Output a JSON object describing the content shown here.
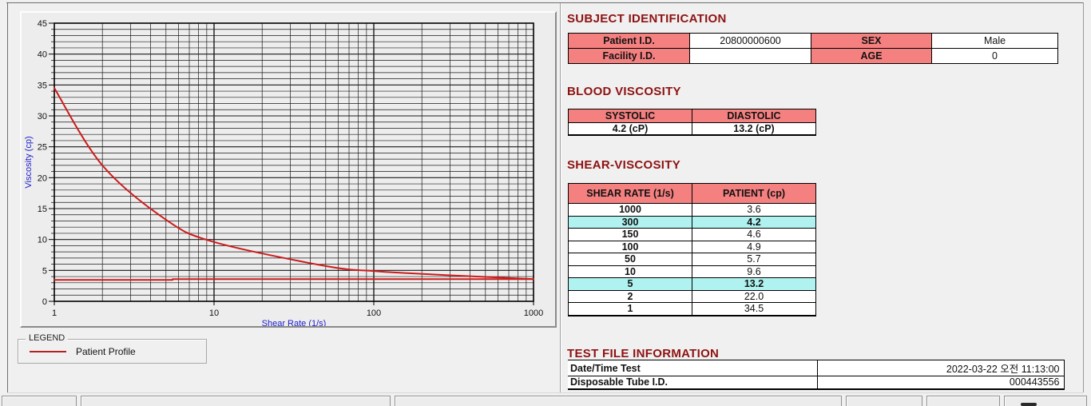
{
  "sections": {
    "subject": {
      "title": "SUBJECT IDENTIFICATION",
      "rows": [
        {
          "c": [
            {
              "label": "Patient I.D.",
              "value": "20800000600"
            },
            {
              "label": "SEX",
              "value": "Male"
            }
          ]
        },
        {
          "c": [
            {
              "label": "Facility I.D.",
              "value": ""
            },
            {
              "label": "AGE",
              "value": "0"
            }
          ]
        }
      ]
    },
    "blood": {
      "title": "BLOOD VISCOSITY",
      "headers": [
        "SYSTOLIC",
        "DIASTOLIC"
      ],
      "values": [
        "4.2 (cP)",
        "13.2 (cP)"
      ]
    },
    "shear": {
      "title": "SHEAR-VISCOSITY",
      "headers": [
        "SHEAR RATE (1/s)",
        "PATIENT (cp)"
      ],
      "rows": [
        {
          "rate": "1000",
          "value": "3.6",
          "highlight": false
        },
        {
          "rate": "300",
          "value": "4.2",
          "highlight": true
        },
        {
          "rate": "150",
          "value": "4.6",
          "highlight": false
        },
        {
          "rate": "100",
          "value": "4.9",
          "highlight": false
        },
        {
          "rate": "50",
          "value": "5.7",
          "highlight": false
        },
        {
          "rate": "10",
          "value": "9.6",
          "highlight": false
        },
        {
          "rate": "5",
          "value": "13.2",
          "highlight": true
        },
        {
          "rate": "2",
          "value": "22.0",
          "highlight": false
        },
        {
          "rate": "1",
          "value": "34.5",
          "highlight": false
        }
      ]
    },
    "testfile": {
      "title": "TEST FILE INFORMATION",
      "rows": [
        {
          "label": "Date/Time Test",
          "value": "2022-03-22  오전 11:13:00"
        },
        {
          "label": "Disposable Tube I.D.",
          "value": "000443556"
        }
      ]
    }
  },
  "legend": {
    "title": "LEGEND",
    "entries": [
      {
        "label": "Patient Profile",
        "color": "#b22222"
      }
    ]
  },
  "chart_data": {
    "type": "line",
    "title": "",
    "xlabel": "Shear Rate (1/s)",
    "ylabel": "Viscosity (cp)",
    "x_scale": "log",
    "xlim": [
      1,
      1000
    ],
    "ylim": [
      0,
      45
    ],
    "x_ticks": [
      1,
      10,
      100,
      1000
    ],
    "y_ticks": [
      0,
      5,
      10,
      15,
      20,
      25,
      30,
      35,
      40,
      45
    ],
    "grid": "both, minor gridlines every 1 cp and every log step",
    "legend_position": "below-left group box",
    "series": [
      {
        "name": "Patient Profile",
        "color": "#cc1c1c",
        "smooth": true,
        "x": [
          1,
          2,
          5,
          10,
          50,
          100,
          150,
          300,
          1000
        ],
        "y": [
          34.5,
          22.0,
          13.2,
          9.6,
          5.7,
          4.9,
          4.6,
          4.2,
          3.6
        ]
      },
      {
        "name": "flat-reference-line",
        "color": "#cc1c1c",
        "smooth": false,
        "x": [
          1,
          5.5,
          5.5,
          1000
        ],
        "y": [
          3.45,
          3.45,
          3.6,
          3.6
        ]
      }
    ],
    "colors": {
      "axis_label": "#2020cc",
      "grid": "#1a1a1a",
      "header_pink": "#f58080",
      "highlight_cyan": "#aff2f0",
      "section_title": "#8e1212"
    }
  }
}
